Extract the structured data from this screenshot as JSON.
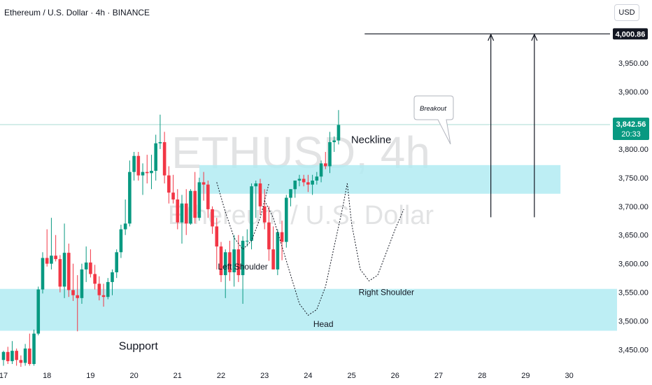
{
  "header": {
    "title": "Ethereum / U.S. Dollar · 4h · BINANCE",
    "currency": "USD"
  },
  "watermark": {
    "symbol": "ETHUSD, 4h",
    "name": "Ethereum / U.S. Dollar"
  },
  "colors": {
    "up": "#089981",
    "down": "#f23645",
    "zone": "#b2ebf2",
    "text": "#131722",
    "axis": "#131722"
  },
  "chart_data": {
    "type": "candlestick",
    "y_axis": {
      "min": 3425,
      "max": 4060,
      "ticks": [
        3450,
        3500,
        3550,
        3600,
        3650,
        3700,
        3750,
        3800,
        3850,
        3900,
        3950
      ]
    },
    "x_axis": {
      "labels": [
        "17",
        "18",
        "19",
        "20",
        "21",
        "22",
        "23",
        "24",
        "25",
        "26",
        "27",
        "28",
        "29",
        "30"
      ],
      "label_bars": [
        0,
        10,
        20,
        30,
        40,
        50,
        60,
        70,
        80,
        90,
        100,
        110,
        120,
        130
      ]
    },
    "candles": [
      {
        "o": 3432,
        "h": 3448,
        "l": 3422,
        "c": 3446
      },
      {
        "o": 3446,
        "h": 3455,
        "l": 3425,
        "c": 3430
      },
      {
        "o": 3430,
        "h": 3465,
        "l": 3425,
        "c": 3448
      },
      {
        "o": 3448,
        "h": 3452,
        "l": 3422,
        "c": 3432
      },
      {
        "o": 3432,
        "h": 3440,
        "l": 3420,
        "c": 3427
      },
      {
        "o": 3427,
        "h": 3460,
        "l": 3422,
        "c": 3452
      },
      {
        "o": 3452,
        "h": 3478,
        "l": 3422,
        "c": 3425
      },
      {
        "o": 3425,
        "h": 3485,
        "l": 3422,
        "c": 3478
      },
      {
        "o": 3478,
        "h": 3560,
        "l": 3475,
        "c": 3555
      },
      {
        "o": 3555,
        "h": 3620,
        "l": 3548,
        "c": 3610
      },
      {
        "o": 3610,
        "h": 3660,
        "l": 3595,
        "c": 3600
      },
      {
        "o": 3600,
        "h": 3680,
        "l": 3590,
        "c": 3614
      },
      {
        "o": 3614,
        "h": 3650,
        "l": 3604,
        "c": 3608
      },
      {
        "o": 3608,
        "h": 3615,
        "l": 3550,
        "c": 3560
      },
      {
        "o": 3560,
        "h": 3670,
        "l": 3540,
        "c": 3619
      },
      {
        "o": 3619,
        "h": 3635,
        "l": 3542,
        "c": 3554
      },
      {
        "o": 3554,
        "h": 3600,
        "l": 3535,
        "c": 3545
      },
      {
        "o": 3545,
        "h": 3580,
        "l": 3482,
        "c": 3540
      },
      {
        "o": 3540,
        "h": 3600,
        "l": 3530,
        "c": 3590
      },
      {
        "o": 3590,
        "h": 3630,
        "l": 3568,
        "c": 3602
      },
      {
        "o": 3602,
        "h": 3625,
        "l": 3576,
        "c": 3582
      },
      {
        "o": 3582,
        "h": 3598,
        "l": 3555,
        "c": 3565
      },
      {
        "o": 3565,
        "h": 3578,
        "l": 3536,
        "c": 3545
      },
      {
        "o": 3545,
        "h": 3565,
        "l": 3525,
        "c": 3542
      },
      {
        "o": 3542,
        "h": 3575,
        "l": 3538,
        "c": 3568
      },
      {
        "o": 3568,
        "h": 3590,
        "l": 3545,
        "c": 3585
      },
      {
        "o": 3585,
        "h": 3625,
        "l": 3575,
        "c": 3620
      },
      {
        "o": 3620,
        "h": 3668,
        "l": 3610,
        "c": 3660
      },
      {
        "o": 3660,
        "h": 3712,
        "l": 3650,
        "c": 3670
      },
      {
        "o": 3670,
        "h": 3780,
        "l": 3665,
        "c": 3760
      },
      {
        "o": 3760,
        "h": 3795,
        "l": 3745,
        "c": 3788
      },
      {
        "o": 3788,
        "h": 3795,
        "l": 3745,
        "c": 3754
      },
      {
        "o": 3754,
        "h": 3775,
        "l": 3720,
        "c": 3760
      },
      {
        "o": 3760,
        "h": 3790,
        "l": 3740,
        "c": 3758
      },
      {
        "o": 3758,
        "h": 3790,
        "l": 3730,
        "c": 3762
      },
      {
        "o": 3762,
        "h": 3825,
        "l": 3745,
        "c": 3810
      },
      {
        "o": 3810,
        "h": 3860,
        "l": 3800,
        "c": 3812
      },
      {
        "o": 3812,
        "h": 3830,
        "l": 3740,
        "c": 3754
      },
      {
        "o": 3754,
        "h": 3770,
        "l": 3705,
        "c": 3724
      },
      {
        "o": 3724,
        "h": 3755,
        "l": 3705,
        "c": 3712
      },
      {
        "o": 3712,
        "h": 3730,
        "l": 3660,
        "c": 3672
      },
      {
        "o": 3672,
        "h": 3720,
        "l": 3635,
        "c": 3705
      },
      {
        "o": 3705,
        "h": 3730,
        "l": 3650,
        "c": 3670
      },
      {
        "o": 3670,
        "h": 3730,
        "l": 3668,
        "c": 3727
      },
      {
        "o": 3727,
        "h": 3760,
        "l": 3670,
        "c": 3680
      },
      {
        "o": 3680,
        "h": 3750,
        "l": 3675,
        "c": 3742
      },
      {
        "o": 3742,
        "h": 3760,
        "l": 3710,
        "c": 3738
      },
      {
        "o": 3738,
        "h": 3745,
        "l": 3680,
        "c": 3695
      },
      {
        "o": 3695,
        "h": 3700,
        "l": 3652,
        "c": 3665
      },
      {
        "o": 3665,
        "h": 3680,
        "l": 3590,
        "c": 3630
      },
      {
        "o": 3630,
        "h": 3638,
        "l": 3568,
        "c": 3580
      },
      {
        "o": 3580,
        "h": 3625,
        "l": 3540,
        "c": 3620
      },
      {
        "o": 3620,
        "h": 3640,
        "l": 3570,
        "c": 3585
      },
      {
        "o": 3585,
        "h": 3650,
        "l": 3560,
        "c": 3625
      },
      {
        "o": 3625,
        "h": 3650,
        "l": 3568,
        "c": 3580
      },
      {
        "o": 3580,
        "h": 3648,
        "l": 3530,
        "c": 3640
      },
      {
        "o": 3640,
        "h": 3660,
        "l": 3630,
        "c": 3640
      },
      {
        "o": 3640,
        "h": 3740,
        "l": 3625,
        "c": 3735
      },
      {
        "o": 3735,
        "h": 3745,
        "l": 3680,
        "c": 3740
      },
      {
        "o": 3740,
        "h": 3748,
        "l": 3685,
        "c": 3700
      },
      {
        "o": 3700,
        "h": 3730,
        "l": 3660,
        "c": 3672
      },
      {
        "o": 3672,
        "h": 3700,
        "l": 3605,
        "c": 3625
      },
      {
        "o": 3625,
        "h": 3665,
        "l": 3590,
        "c": 3590
      },
      {
        "o": 3590,
        "h": 3660,
        "l": 3580,
        "c": 3655
      },
      {
        "o": 3655,
        "h": 3675,
        "l": 3606,
        "c": 3638
      },
      {
        "o": 3638,
        "h": 3720,
        "l": 3628,
        "c": 3715
      },
      {
        "o": 3715,
        "h": 3730,
        "l": 3700,
        "c": 3730
      },
      {
        "o": 3730,
        "h": 3745,
        "l": 3715,
        "c": 3745
      },
      {
        "o": 3745,
        "h": 3755,
        "l": 3735,
        "c": 3748
      },
      {
        "o": 3748,
        "h": 3755,
        "l": 3735,
        "c": 3742
      },
      {
        "o": 3742,
        "h": 3755,
        "l": 3725,
        "c": 3738
      },
      {
        "o": 3738,
        "h": 3755,
        "l": 3720,
        "c": 3745
      },
      {
        "o": 3745,
        "h": 3760,
        "l": 3738,
        "c": 3752
      },
      {
        "o": 3752,
        "h": 3780,
        "l": 3742,
        "c": 3775
      },
      {
        "o": 3775,
        "h": 3795,
        "l": 3765,
        "c": 3770
      },
      {
        "o": 3770,
        "h": 3830,
        "l": 3758,
        "c": 3812
      },
      {
        "o": 3812,
        "h": 3822,
        "l": 3795,
        "c": 3815
      },
      {
        "o": 3815,
        "h": 3868,
        "l": 3808,
        "c": 3842
      }
    ],
    "current_price": {
      "value": 3842.56,
      "label": "3,842.56",
      "countdown": "20:33"
    },
    "target_price": {
      "value": 4000.86,
      "label": "4,000.86"
    },
    "zones": [
      {
        "name": "Neckline",
        "from_bar": 45,
        "to_bar": 128,
        "low": 3722,
        "high": 3772
      },
      {
        "name": "Support",
        "from_bar": -1,
        "to_bar": 141,
        "low": 3483,
        "high": 3556
      }
    ],
    "annotations": {
      "neckline": "Neckline",
      "support": "Support",
      "left_shoulder": "Left Shoulder",
      "head": "Head",
      "right_shoulder": "Right Shoulder",
      "breakout": "Breakout"
    }
  }
}
